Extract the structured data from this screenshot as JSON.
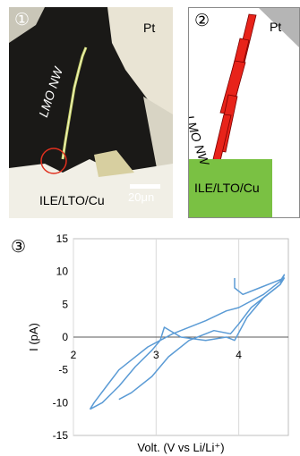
{
  "panel1": {
    "number": "①",
    "pt_label": "Pt",
    "nw_label": "LMO NW",
    "electrode_label": "ILE/LTO/Cu",
    "scale_label": "20μn"
  },
  "panel2": {
    "number": "②",
    "pt_label": "Pt",
    "nw_label": "LMO NW",
    "electrode_label": "ILE/LTO/Cu",
    "colors": {
      "nanowire": "#e8231a",
      "electrode": "#7ac143",
      "pt_corner": "#b5b5b5"
    }
  },
  "panel3": {
    "number": "③",
    "chart_data": {
      "type": "line",
      "title": "",
      "xlabel": "Volt. (V vs Li/Li⁺)",
      "ylabel": "I (pA)",
      "xlim": [
        2,
        4.6
      ],
      "ylim": [
        -15,
        15
      ],
      "x_ticks": [
        "2",
        "3",
        "4"
      ],
      "y_ticks": [
        "15",
        "10",
        "5",
        "0",
        "-5",
        "-10",
        "-15"
      ],
      "grid": "vertical",
      "line_color": "#5b9bd5",
      "series": [
        {
          "x": [
            2.2,
            2.35,
            2.55,
            2.75,
            2.95,
            3.05,
            3.1,
            3.3,
            3.6,
            3.85,
            3.95,
            4.1,
            4.3,
            4.5,
            4.55,
            4.5,
            4.3,
            4.0,
            3.85,
            3.6,
            3.2,
            2.9,
            2.7,
            2.55,
            2.4,
            2.25,
            2.2
          ],
          "y": [
            -11,
            -10,
            -7.5,
            -4.5,
            -2,
            -0.5,
            1.5,
            0,
            -0.5,
            0,
            -0.5,
            3,
            6,
            8,
            9.5,
            8.5,
            6.5,
            4.5,
            4,
            2.5,
            0.5,
            -1.5,
            -3.5,
            -5,
            -7.5,
            -10,
            -11
          ]
        },
        {
          "x": [
            2.55,
            2.7,
            2.95,
            3.15,
            3.4,
            3.7,
            3.9,
            4.0,
            4.15,
            4.35,
            4.5,
            4.55,
            4.45,
            4.25,
            4.05,
            3.95,
            3.95
          ],
          "y": [
            -9.5,
            -8.5,
            -6,
            -3,
            -0.5,
            1,
            0.5,
            2,
            4.5,
            6.5,
            8,
            9,
            8.5,
            7.5,
            6.5,
            7.5,
            9
          ]
        }
      ]
    }
  }
}
